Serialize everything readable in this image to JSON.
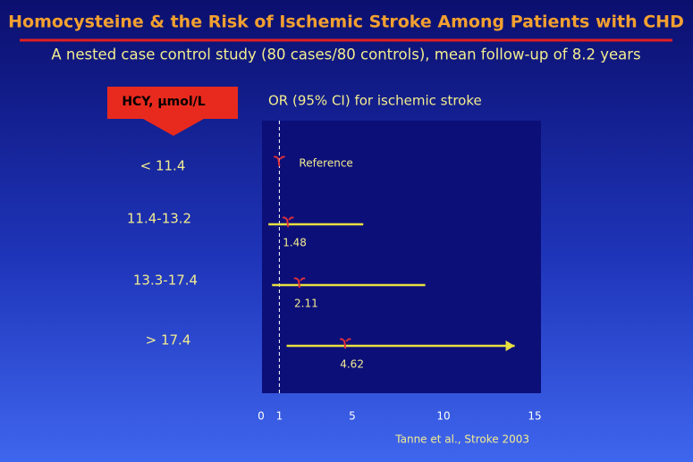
{
  "chart_data": {
    "type": "forest",
    "title": "Homocysteine & the Risk of Ischemic Stroke Among Patients with CHD",
    "subtitle": "A nested case control study (80 cases/80 controls), mean follow-up of 8.2 years",
    "category_header": "HCY, µmol/L",
    "x_label": "OR (95% CI) for ischemic stroke",
    "categories": [
      "< 11.4",
      "11.4-13.2",
      "13.3-17.4",
      "> 17.4"
    ],
    "values": [
      1,
      1.48,
      2.11,
      4.62
    ],
    "ci_lower": [
      null,
      0.4,
      0.6,
      1.4
    ],
    "ci_upper": [
      null,
      5.6,
      9.0,
      13.9
    ],
    "reference_label": "Reference",
    "reference_line": 1,
    "xlim": [
      0,
      15
    ],
    "xticks": [
      0,
      1,
      5,
      10,
      15
    ],
    "marker_color": "#e0303a",
    "ci_color": "#e8e040",
    "source": "Tanne et al., Stroke 2003"
  }
}
